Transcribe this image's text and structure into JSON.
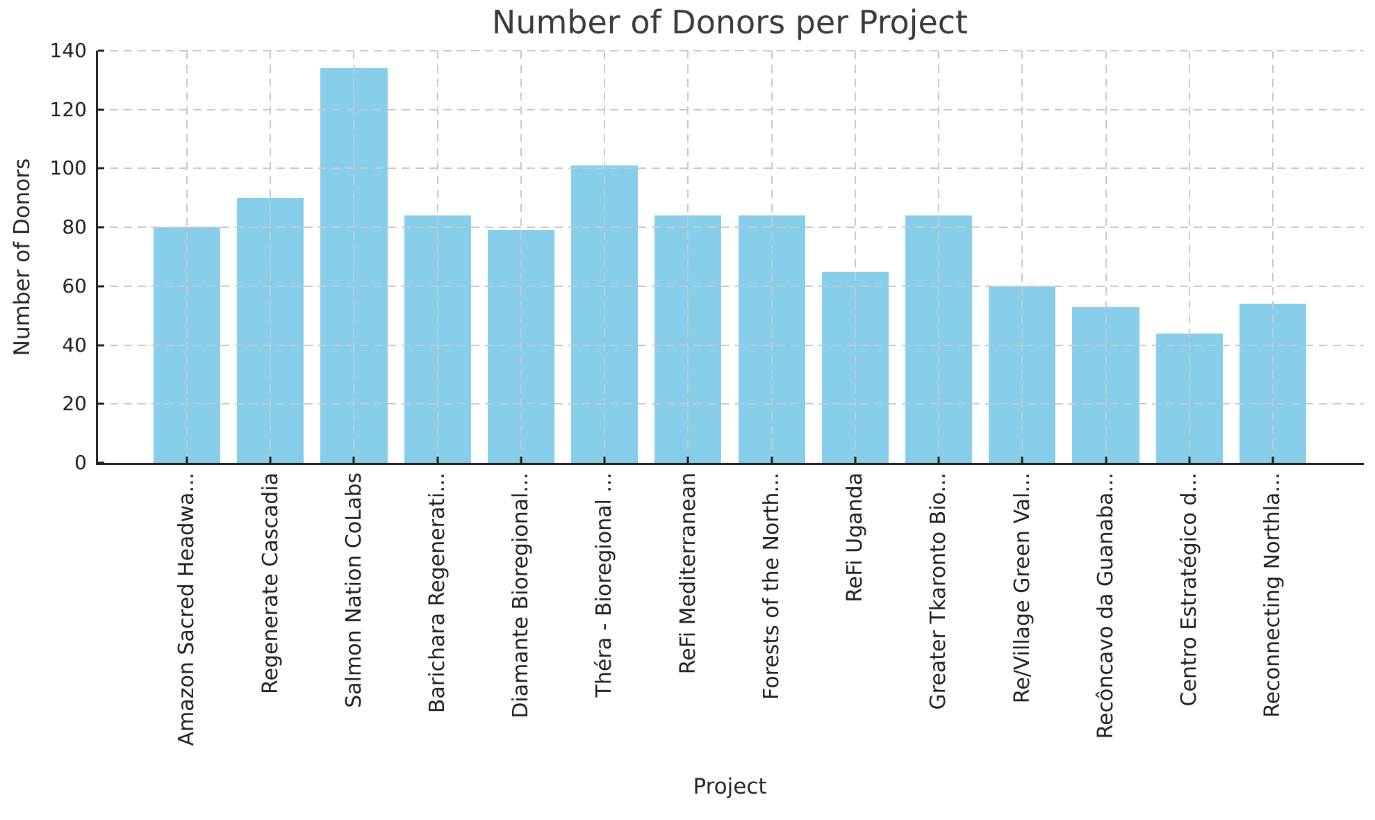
{
  "chart_data": {
    "type": "bar",
    "title": "Number of Donors per Project",
    "xlabel": "Project",
    "ylabel": "Number of Donors",
    "categories": [
      "Amazon Sacred Headwa...",
      "Regenerate Cascadia",
      "Salmon Nation CoLabs",
      "Barichara Regenerati...",
      "Diamante Bioregional...",
      "Théra - Bioregional ...",
      "ReFi Mediterranean",
      "Forests of the North...",
      "ReFi Uganda",
      "Greater Tkaronto Bio...",
      "Re/Village Green Val...",
      "Recôncavo da Guanaba...",
      "Centro Estratégico d...",
      "Reconnecting Northla..."
    ],
    "values": [
      80,
      90,
      134,
      84,
      79,
      101,
      84,
      84,
      65,
      84,
      60,
      53,
      44,
      54
    ],
    "ylim": [
      0,
      140
    ],
    "yticks": [
      0,
      20,
      40,
      60,
      80,
      100,
      120,
      140
    ],
    "x_tick_label_rotation_deg": 90,
    "grid": {
      "visible": true,
      "axis": "both",
      "style": "dashed",
      "drawn_above_bars": true
    },
    "legend_position": "none",
    "bar_color": "#87CEEB"
  },
  "colors": {
    "bar": "#87CEEB",
    "grid": "#c9c9c9",
    "spine": "#1f1f1f",
    "tick_text": "#1f1f1f",
    "axis_label_text": "#262626",
    "title_text": "#3a3a3a",
    "background": "#ffffff"
  }
}
